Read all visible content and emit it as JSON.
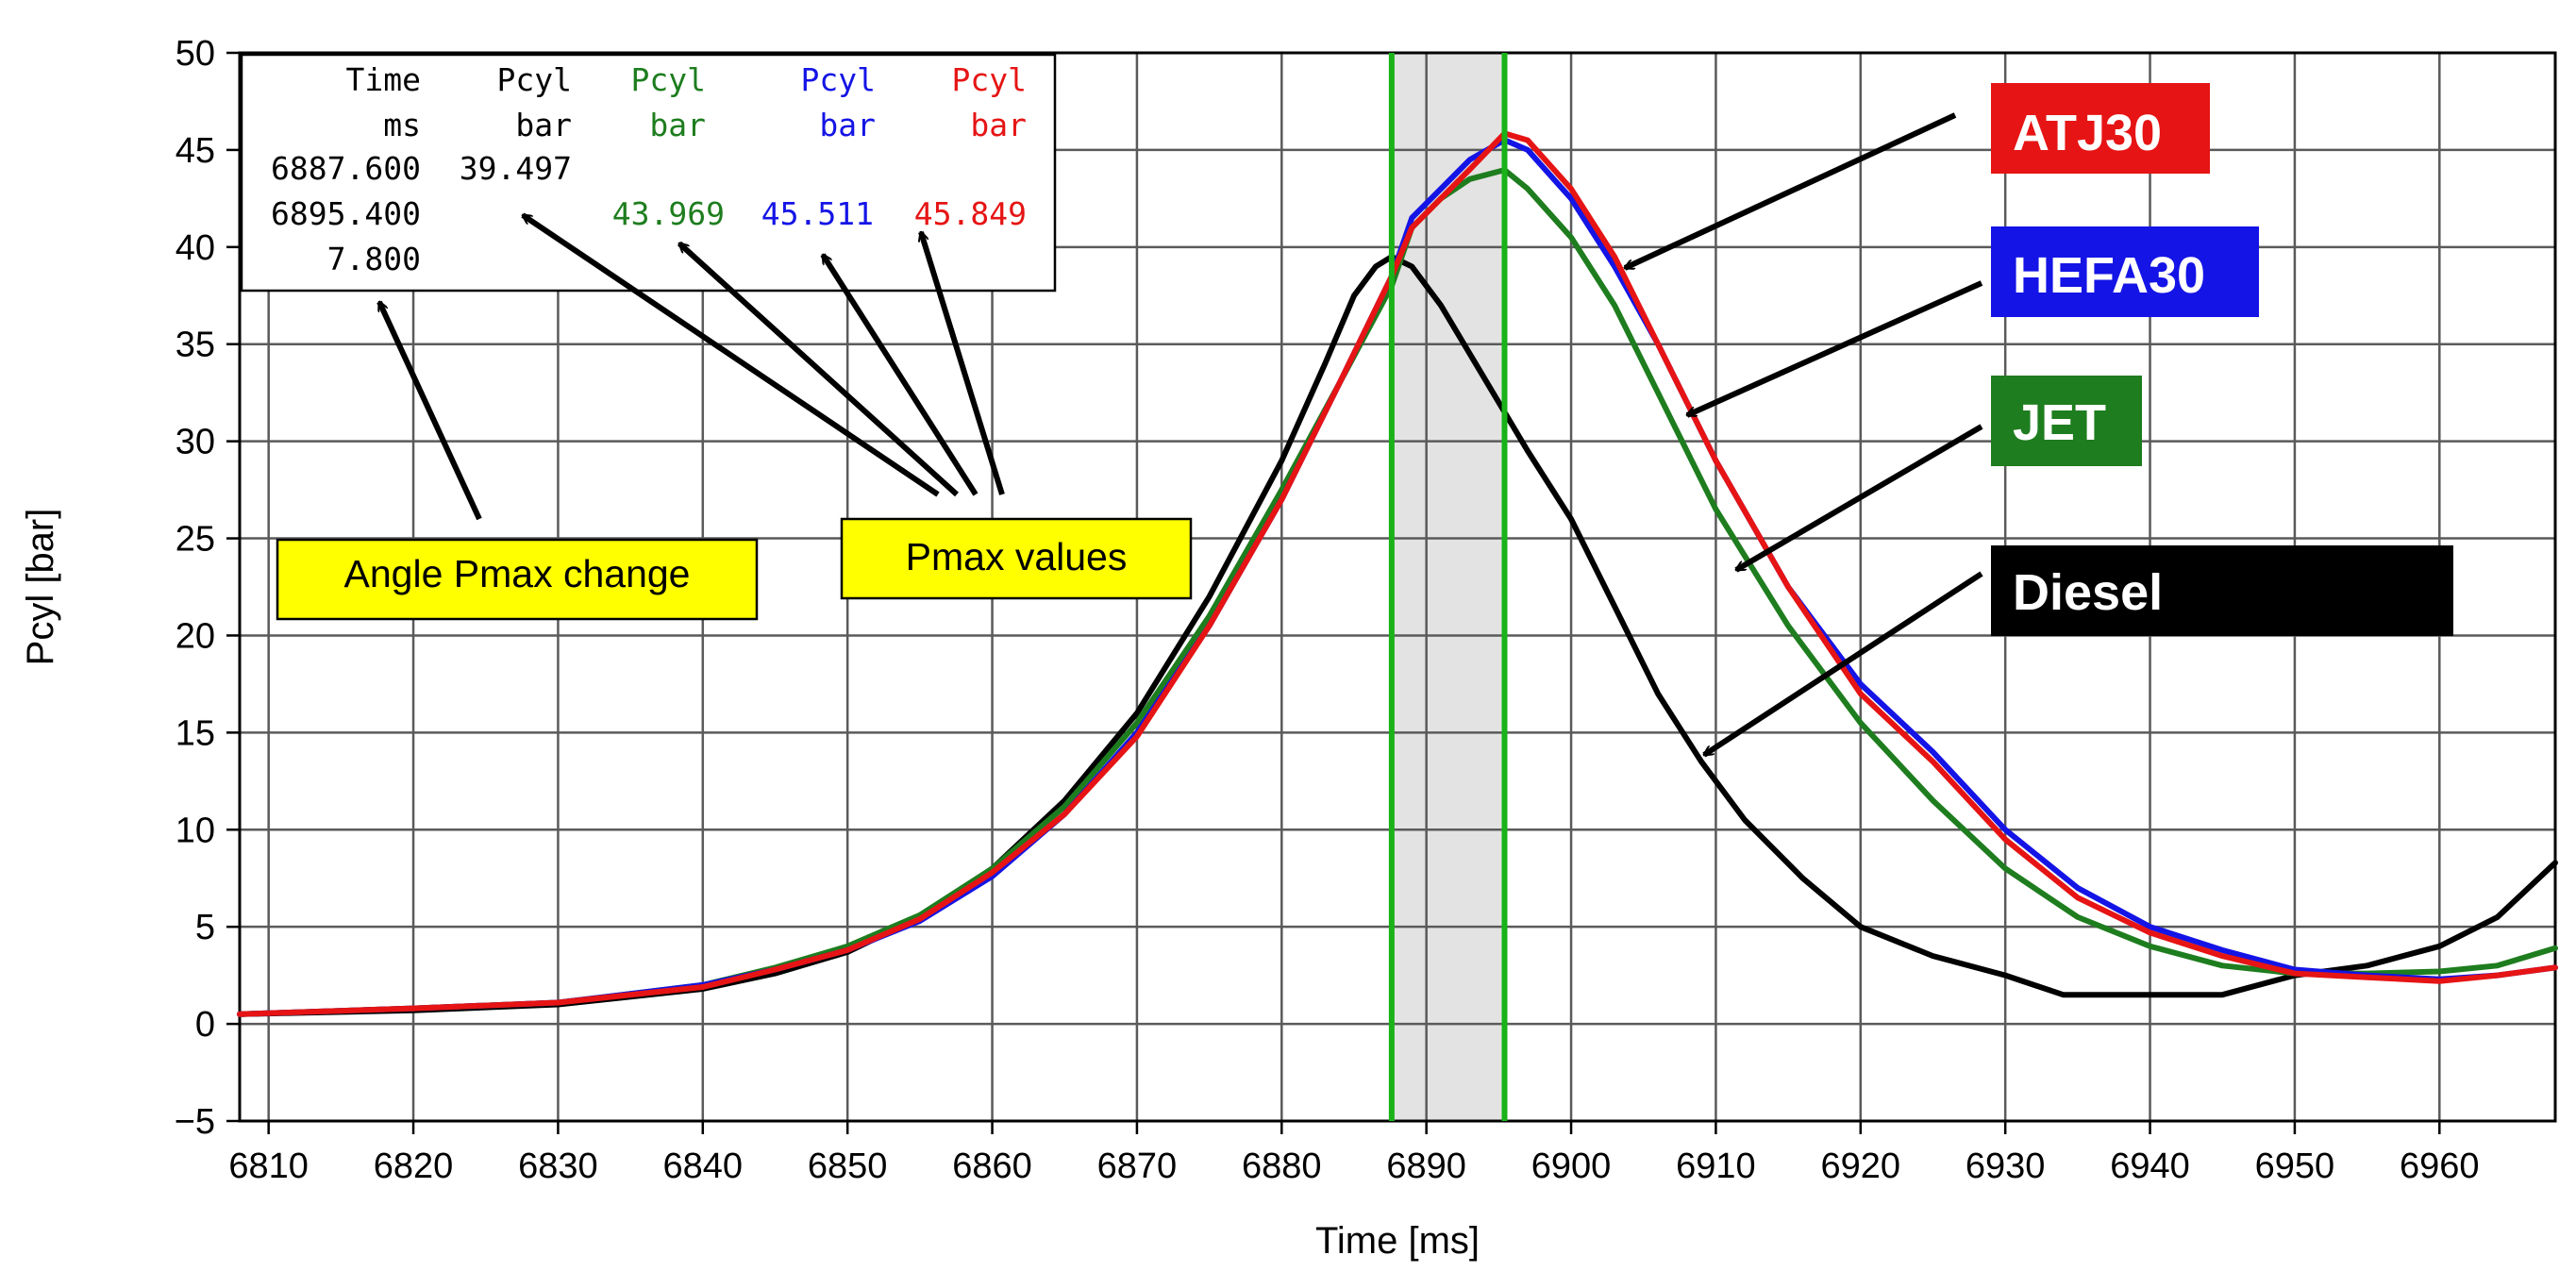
{
  "chart_data": {
    "type": "line",
    "title": "",
    "xlabel": "Time [ms]",
    "ylabel": "Pcyl [bar]",
    "xlim": [
      6808,
      6968
    ],
    "ylim": [
      -5,
      50
    ],
    "xticks": [
      6810,
      6820,
      6830,
      6840,
      6850,
      6860,
      6870,
      6880,
      6890,
      6900,
      6910,
      6920,
      6930,
      6940,
      6950,
      6960
    ],
    "yticks": [
      -5,
      0,
      5,
      10,
      15,
      20,
      25,
      30,
      35,
      40,
      45,
      50
    ],
    "ytick_labels": [
      "−5",
      "0",
      "5",
      "10",
      "15",
      "20",
      "25",
      "30",
      "35",
      "40",
      "45",
      "50"
    ],
    "grid": true,
    "highlight_band": [
      6887.6,
      6895.4
    ],
    "cursor_lines": [
      6887.6,
      6895.4
    ],
    "series": [
      {
        "name": "Diesel",
        "color": "#000000",
        "x": [
          6808,
          6820,
          6830,
          6840,
          6845,
          6850,
          6855,
          6860,
          6865,
          6870,
          6875,
          6880,
          6883,
          6885,
          6886.5,
          6887.6,
          6889,
          6891,
          6893,
          6895,
          6897,
          6900,
          6903,
          6906,
          6909,
          6912,
          6916,
          6920,
          6925,
          6930,
          6934,
          6938,
          6945,
          6950,
          6955,
          6960,
          6964,
          6968
        ],
        "values": [
          0.5,
          0.7,
          1.0,
          1.8,
          2.6,
          3.7,
          5.5,
          8.0,
          11.5,
          16.0,
          22.0,
          29.0,
          34.0,
          37.5,
          39.0,
          39.5,
          39.0,
          37.0,
          34.5,
          32.0,
          29.5,
          26.0,
          21.5,
          17.0,
          13.5,
          10.5,
          7.5,
          5.0,
          3.5,
          2.5,
          1.5,
          1.5,
          1.5,
          2.5,
          3.0,
          4.0,
          5.5,
          8.3
        ]
      },
      {
        "name": "JET",
        "color": "#1e7d1e",
        "x": [
          6808,
          6820,
          6830,
          6840,
          6845,
          6850,
          6855,
          6860,
          6865,
          6870,
          6875,
          6880,
          6884,
          6887.6,
          6889,
          6891,
          6893,
          6895.4,
          6897,
          6900,
          6903,
          6906,
          6910,
          6915,
          6920,
          6925,
          6930,
          6935,
          6940,
          6945,
          6950,
          6955,
          6960,
          6964,
          6968
        ],
        "values": [
          0.5,
          0.8,
          1.1,
          2.0,
          2.9,
          4.0,
          5.6,
          8.0,
          11.2,
          15.5,
          21.0,
          27.5,
          33.0,
          38.0,
          41.0,
          42.5,
          43.5,
          43.97,
          43.0,
          40.5,
          37.0,
          32.5,
          26.5,
          20.5,
          15.5,
          11.5,
          8.0,
          5.5,
          4.0,
          3.0,
          2.6,
          2.6,
          2.7,
          3.0,
          3.9
        ]
      },
      {
        "name": "HEFA30",
        "color": "#1414e6",
        "x": [
          6808,
          6820,
          6830,
          6840,
          6845,
          6850,
          6855,
          6860,
          6865,
          6870,
          6875,
          6880,
          6884,
          6887.6,
          6889,
          6891,
          6893,
          6895.4,
          6897,
          6900,
          6903,
          6906,
          6910,
          6915,
          6920,
          6925,
          6930,
          6935,
          6940,
          6945,
          6950,
          6955,
          6960,
          6964,
          6968
        ],
        "values": [
          0.5,
          0.8,
          1.1,
          2.0,
          2.8,
          3.8,
          5.3,
          7.6,
          10.8,
          15.0,
          20.5,
          27.0,
          33.0,
          38.5,
          41.5,
          43.0,
          44.5,
          45.51,
          45.0,
          42.5,
          39.0,
          35.0,
          29.0,
          22.5,
          17.5,
          14.0,
          10.0,
          7.0,
          5.0,
          3.8,
          2.8,
          2.5,
          2.3,
          2.5,
          2.9
        ]
      },
      {
        "name": "ATJ30",
        "color": "#e61414",
        "x": [
          6808,
          6820,
          6830,
          6840,
          6845,
          6850,
          6855,
          6860,
          6865,
          6870,
          6875,
          6880,
          6884,
          6887.6,
          6889,
          6891,
          6893,
          6895.4,
          6897,
          6900,
          6903,
          6906,
          6910,
          6915,
          6920,
          6925,
          6930,
          6935,
          6940,
          6945,
          6950,
          6955,
          6960,
          6964,
          6968
        ],
        "values": [
          0.5,
          0.8,
          1.1,
          1.9,
          2.8,
          3.8,
          5.4,
          7.8,
          10.8,
          14.8,
          20.5,
          27.0,
          33.0,
          38.5,
          41.0,
          42.5,
          44.0,
          45.85,
          45.5,
          43.0,
          39.5,
          35.0,
          29.0,
          22.5,
          17.0,
          13.5,
          9.5,
          6.5,
          4.7,
          3.5,
          2.6,
          2.4,
          2.2,
          2.5,
          2.9
        ]
      }
    ],
    "legend": [
      {
        "name": "ATJ30",
        "color": "#e61414"
      },
      {
        "name": "HEFA30",
        "color": "#1414e6"
      },
      {
        "name": "JET",
        "color": "#1e7d1e"
      },
      {
        "name": "Diesel",
        "color": "#000000"
      }
    ],
    "readout_table": {
      "columns": [
        {
          "header": "Time",
          "unit": "ms",
          "color": "#000000",
          "rows": [
            "6887.600",
            "6895.400",
            "7.800"
          ]
        },
        {
          "header": "Pcyl",
          "unit": "bar",
          "color": "#000000",
          "rows": [
            "39.497",
            "",
            ""
          ]
        },
        {
          "header": "Pcyl",
          "unit": "bar",
          "color": "#1e7d1e",
          "rows": [
            "",
            "43.969",
            ""
          ]
        },
        {
          "header": "Pcyl",
          "unit": "bar",
          "color": "#1414e6",
          "rows": [
            "",
            "45.511",
            ""
          ]
        },
        {
          "header": "Pcyl",
          "unit": "bar",
          "color": "#e61414",
          "rows": [
            "",
            "45.849",
            ""
          ]
        }
      ]
    },
    "annotations": [
      {
        "text": "Angle Pmax change"
      },
      {
        "text": "Pmax values"
      }
    ],
    "colors": {
      "grid": "#5a5a5a",
      "band": "#e3e3e3",
      "cursor": "#19b219",
      "note_bg": "#ffff00"
    }
  }
}
